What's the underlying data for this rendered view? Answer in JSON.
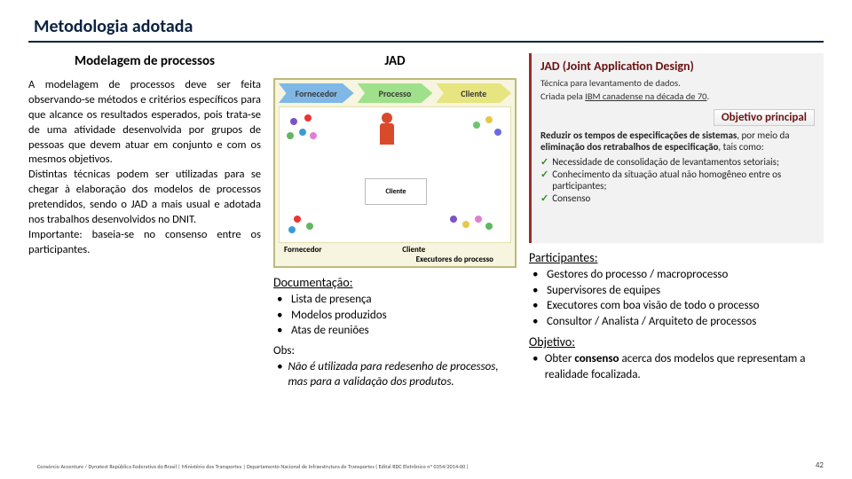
{
  "title": "Metodologia adotada",
  "left": {
    "heading": "Modelagem de processos",
    "text": "A modelagem de processos deve ser feita observando-se métodos e critérios específicos para que alcance os resultados esperados, pois trata-se de uma atividade desenvolvida por grupos de pessoas que devem atuar em conjunto e com os mesmos objetivos.\nDistintas técnicas podem ser utilizadas para se chegar à elaboração dos modelos de processos pretendidos, sendo o JAD a mais usual e adotada nos trabalhos desenvolvidos no DNIT.\nImportante: baseia-se no consenso entre os participantes."
  },
  "mid": {
    "heading": "JAD",
    "diagram": {
      "arrows": [
        "Fornecedor",
        "Processo",
        "Cliente"
      ],
      "arrow_colors": [
        "#7fb8e6",
        "#9fe08a",
        "#e6e57f"
      ],
      "bottom_labels": [
        "Fornecedor",
        "Executores do processo",
        "Cliente"
      ],
      "border_color": "#bdb97a",
      "bg_color": "#f7f5df"
    },
    "doc": {
      "heading": "Documentação:",
      "items": [
        "Lista de presença",
        "Modelos produzidos",
        "Atas de reuniões"
      ]
    },
    "obs": {
      "heading": "Obs:",
      "text": "Não é utilizada para redesenho de processos, mas para a validação dos produtos."
    }
  },
  "right": {
    "jadbox": {
      "title": "JAD (Joint Application Design)",
      "sub1_label": "Técnica para levantamento de dados.",
      "sub2_prefix": "Criada pela ",
      "sub2_u": "IBM canadense na década de 70",
      "sub2_suffix": ".",
      "obj_heading": "Objetivo principal",
      "obj_text_pre": "Reduzir os tempos de especificações de sistemas",
      "obj_text_mid": ", por meio da ",
      "obj_text_bold": "eliminação dos retrabalhos de especificação",
      "obj_text_post": ", tais como:",
      "checks": [
        "Necessidade de consolidação de levantamentos setoriais;",
        "Conhecimento da situação atual não homogêneo entre os participantes;",
        "Consenso"
      ]
    },
    "participantes": {
      "heading": "Participantes:",
      "items": [
        "Gestores do processo / macroprocesso",
        "Supervisores de equipes",
        "Executores com boa visão de todo o processo",
        "Consultor / Analista / Arquiteto de processos"
      ]
    },
    "objetivo": {
      "heading": "Objetivo:",
      "item_pre": "Obter ",
      "item_bold": "consenso",
      "item_post": " acerca dos modelos que representam a realidade focalizada."
    }
  },
  "footer": {
    "left": "Consórcio Accenture / Dynatest  República Federativa do Brasil | Ministério dos Transportes | Departamento Nacional de Infraestrutura de Transportes ( Edital RDC Eletrônico nº 0354/2014-00 )",
    "page": "42"
  },
  "colors": {
    "title": "#0b2340",
    "jad_accent": "#6a1414"
  }
}
